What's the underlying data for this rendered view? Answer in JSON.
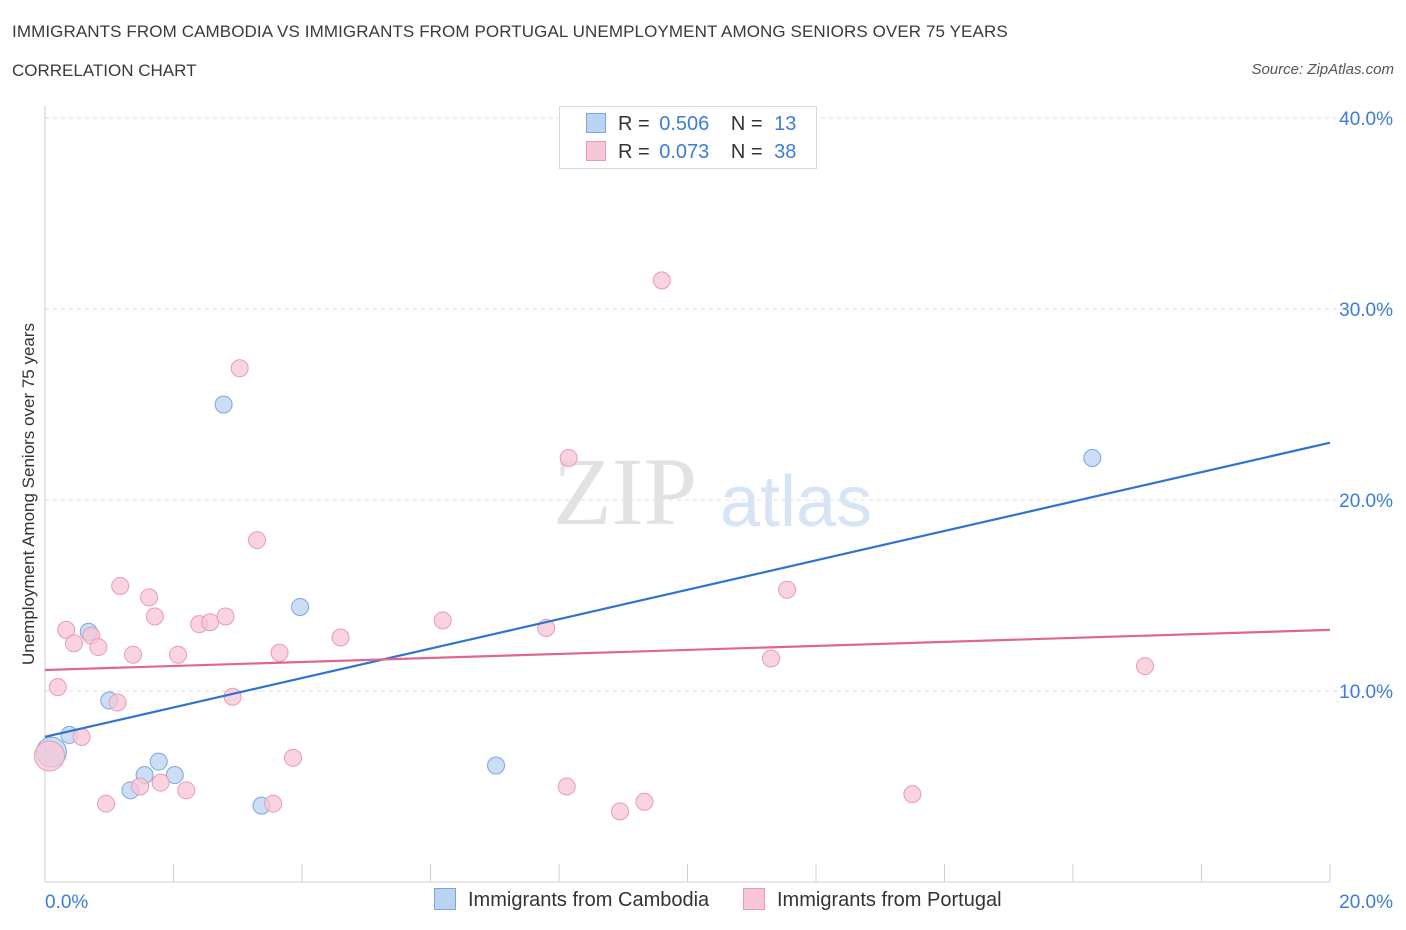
{
  "title": "IMMIGRANTS FROM CAMBODIA VS IMMIGRANTS FROM PORTUGAL UNEMPLOYMENT AMONG SENIORS OVER 75 YEARS",
  "subtitle": "CORRELATION CHART",
  "source": "Source: ZipAtlas.com",
  "watermark": {
    "zip": "ZIP",
    "atlas": "atlas"
  },
  "legend": {
    "r_label": "R =",
    "n_label": "N =",
    "rows": [
      {
        "name": "Immigrants from Cambodia",
        "r": "0.506",
        "n": "13"
      },
      {
        "name": "Immigrants from Portugal",
        "r": "0.073",
        "n": "38"
      }
    ]
  },
  "chart_data": {
    "type": "scatter",
    "xlabel": "",
    "ylabel": "Unemployment Among Seniors over 75 years",
    "xlim": [
      0,
      20
    ],
    "ylim": [
      0,
      40
    ],
    "x_tick_labels": [
      "0.0%",
      "20.0%"
    ],
    "y_ticks": [
      10,
      20,
      30,
      40
    ],
    "y_tick_labels": [
      "10.0%",
      "20.0%",
      "30.0%",
      "40.0%"
    ],
    "grid": true,
    "colors": {
      "Immigrants from Cambodia": "#3b7dd8",
      "Immigrants from Portugal": "#e8789f"
    },
    "series": [
      {
        "name": "Immigrants from Cambodia",
        "fill": "#b9d3f3",
        "stroke": "#7aa6e0",
        "line_color": "#2f73d0",
        "trend": [
          [
            0,
            7.6
          ],
          [
            20,
            23.0
          ]
        ],
        "points": [
          [
            0.1,
            6.8
          ],
          [
            0.38,
            7.7
          ],
          [
            0.68,
            13.1
          ],
          [
            1.0,
            9.5
          ],
          [
            1.33,
            4.8
          ],
          [
            1.55,
            5.6
          ],
          [
            1.77,
            6.3
          ],
          [
            2.02,
            5.6
          ],
          [
            2.78,
            25.0
          ],
          [
            3.37,
            4.0
          ],
          [
            3.97,
            14.4
          ],
          [
            7.02,
            6.1
          ],
          [
            16.3,
            22.2
          ]
        ]
      },
      {
        "name": "Immigrants from Portugal",
        "fill": "#f7c6d5",
        "stroke": "#eb9ab6",
        "line_color": "#e06591",
        "trend": [
          [
            0,
            11.1
          ],
          [
            20,
            13.2
          ]
        ],
        "points": [
          [
            0.07,
            6.6
          ],
          [
            0.2,
            10.2
          ],
          [
            0.33,
            13.2
          ],
          [
            0.45,
            12.5
          ],
          [
            0.57,
            7.6
          ],
          [
            0.72,
            12.9
          ],
          [
            0.83,
            12.3
          ],
          [
            0.95,
            4.1
          ],
          [
            1.13,
            9.4
          ],
          [
            1.17,
            15.5
          ],
          [
            1.37,
            11.9
          ],
          [
            1.48,
            5.0
          ],
          [
            1.62,
            14.9
          ],
          [
            1.71,
            13.9
          ],
          [
            1.8,
            5.2
          ],
          [
            2.2,
            4.8
          ],
          [
            2.07,
            11.9
          ],
          [
            2.4,
            13.5
          ],
          [
            2.57,
            13.6
          ],
          [
            2.81,
            13.9
          ],
          [
            2.92,
            9.7
          ],
          [
            3.03,
            26.9
          ],
          [
            3.3,
            17.9
          ],
          [
            3.55,
            4.1
          ],
          [
            3.65,
            12.0
          ],
          [
            3.86,
            6.5
          ],
          [
            4.6,
            12.8
          ],
          [
            6.19,
            13.7
          ],
          [
            7.8,
            13.3
          ],
          [
            8.15,
            22.2
          ],
          [
            8.12,
            5.0
          ],
          [
            8.95,
            3.7
          ],
          [
            9.33,
            4.2
          ],
          [
            9.6,
            31.5
          ],
          [
            11.3,
            11.7
          ],
          [
            11.55,
            15.3
          ],
          [
            13.5,
            4.6
          ],
          [
            17.12,
            11.3
          ]
        ]
      }
    ]
  }
}
